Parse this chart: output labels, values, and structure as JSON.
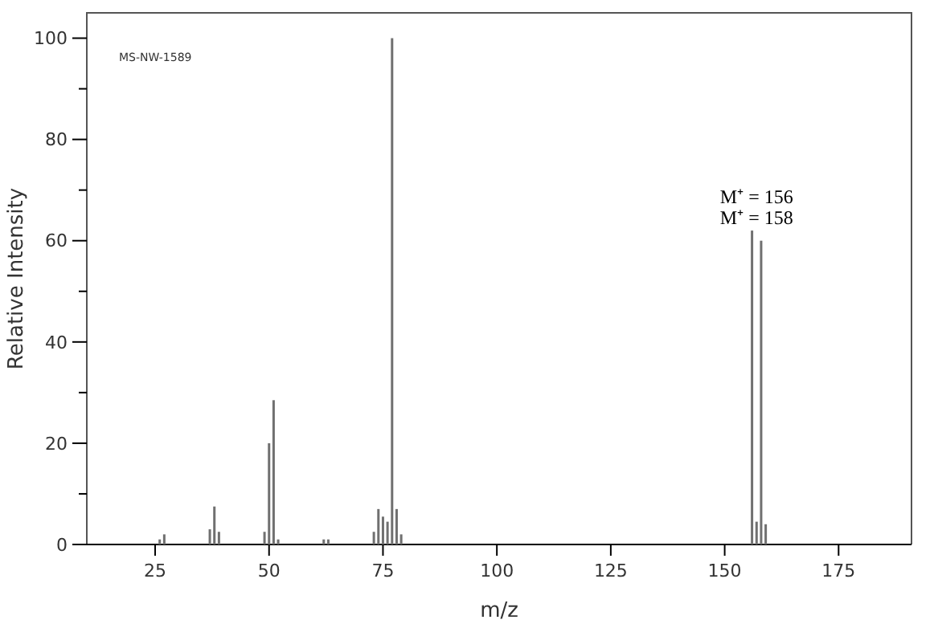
{
  "chart_data": {
    "type": "bar",
    "xlabel": "m/z",
    "ylabel": "Relative Intensity",
    "color": "#707070",
    "x": [
      26,
      27,
      37,
      38,
      39,
      49,
      50,
      51,
      52,
      62,
      63,
      73,
      74,
      75,
      76,
      77,
      78,
      79,
      156,
      157,
      158,
      159
    ],
    "values": [
      1,
      2,
      3,
      7.5,
      2.5,
      2.5,
      20,
      28.5,
      1,
      1,
      1,
      2.5,
      7,
      5.5,
      4.5,
      100,
      7,
      2,
      62,
      4.5,
      60,
      4
    ],
    "xlim": [
      10,
      191
    ],
    "xticks": [
      25,
      50,
      75,
      100,
      125,
      150,
      175
    ],
    "ylim": [
      0,
      105
    ],
    "yticks": [
      0,
      {
        "value": 10,
        "label": null
      },
      20,
      {
        "value": 30,
        "label": null
      },
      40,
      {
        "value": 50,
        "label": null
      },
      60,
      {
        "value": 70,
        "label": null
      },
      80,
      {
        "value": 90,
        "label": null
      },
      100
    ],
    "annotations": [
      "MS-NW-1589",
      {
        "text": "M⁺ = 156",
        "x": 156,
        "y": 62
      },
      {
        "text": "M⁺ = 158",
        "x": 158,
        "y": 60
      }
    ]
  }
}
